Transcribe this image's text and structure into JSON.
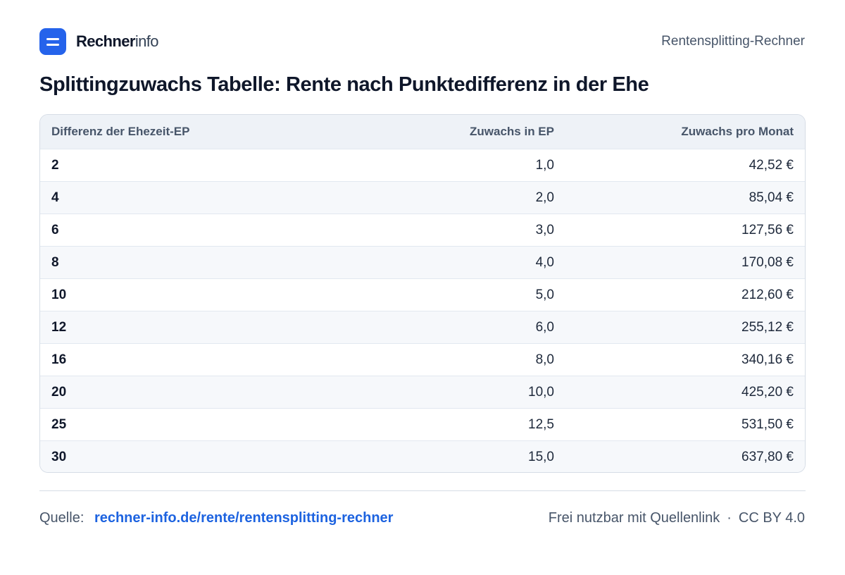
{
  "header": {
    "brand_bold": "Rechner",
    "brand_light": "info",
    "right_label": "Rentensplitting-Rechner"
  },
  "title": "Splittingzuwachs Tabelle: Rente nach Punktedifferenz in der Ehe",
  "table": {
    "columns": [
      "Differenz der Ehezeit-EP",
      "Zuwachs in EP",
      "Zuwachs pro Monat"
    ],
    "rows": [
      [
        "2",
        "1,0",
        "42,52 €"
      ],
      [
        "4",
        "2,0",
        "85,04 €"
      ],
      [
        "6",
        "3,0",
        "127,56 €"
      ],
      [
        "8",
        "4,0",
        "170,08 €"
      ],
      [
        "10",
        "5,0",
        "212,60 €"
      ],
      [
        "12",
        "6,0",
        "255,12 €"
      ],
      [
        "16",
        "8,0",
        "340,16 €"
      ],
      [
        "20",
        "10,0",
        "425,20 €"
      ],
      [
        "25",
        "12,5",
        "531,50 €"
      ],
      [
        "30",
        "15,0",
        "637,80 €"
      ]
    ]
  },
  "footer": {
    "source_label": "Quelle:",
    "source_link": "rechner-info.de/rente/rentensplitting-rechner",
    "license_text": "Frei nutzbar mit Quellenlink",
    "separator": "·",
    "license": "CC BY 4.0"
  },
  "colors": {
    "accent": "#2563eb",
    "link": "#1d63e0",
    "header_row_bg": "#eef2f7",
    "alt_row_bg": "#f6f8fb"
  }
}
